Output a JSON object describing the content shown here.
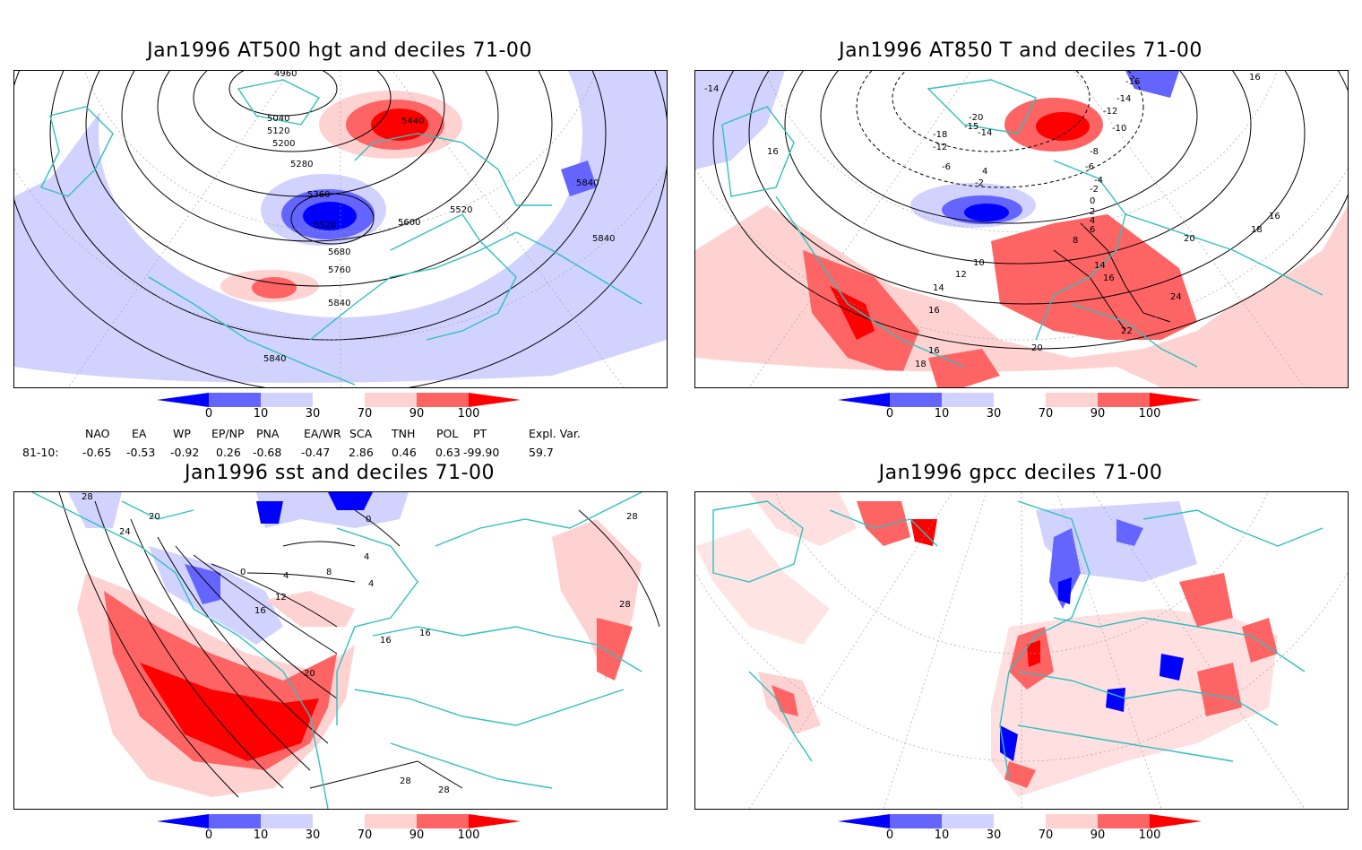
{
  "panels": {
    "p1": {
      "title": "Jan1996 AT500 hgt and deciles 71-00",
      "labels": [
        "5040",
        "5120",
        "5200",
        "5280",
        "5360",
        "5440",
        "5520",
        "5520",
        "5600",
        "5680",
        "5760",
        "5840",
        "5840",
        "5840",
        "5840",
        "4960"
      ]
    },
    "p2": {
      "title": "Jan1996 AT850 T and deciles 71-00",
      "labels": [
        "-14",
        "-16",
        "-14",
        "-12",
        "-10",
        "-8",
        "-6",
        "-4",
        "-2",
        "0",
        "2",
        "4",
        "6",
        "8",
        "10",
        "12",
        "14",
        "16",
        "16",
        "18",
        "20",
        "22",
        "24",
        "-18",
        "-12",
        "-6",
        "4",
        "-2",
        "-20",
        "-15",
        "-14",
        "14",
        "16",
        "16",
        "16",
        "18",
        "20",
        "16"
      ]
    },
    "p3": {
      "title": "Jan1996 sst and deciles 71-00",
      "labels": [
        "28",
        "24",
        "20",
        "0",
        "4",
        "8",
        "12",
        "16",
        "16",
        "16",
        "20",
        "28",
        "28",
        "28",
        "28",
        "4",
        "0",
        "4"
      ]
    },
    "p4": {
      "title": "Jan1996 gpcc deciles 71-00",
      "labels": []
    }
  },
  "colorbar": {
    "ticks": [
      "0",
      "10",
      "30",
      "70",
      "90",
      "100"
    ],
    "colors": [
      "#0000ff",
      "#6464ff",
      "#d2d2ff",
      "#ffffff",
      "#ffd2d2",
      "#ff6464",
      "#ff0000"
    ]
  },
  "indices": {
    "names": [
      "NAO",
      "EA",
      "WP",
      "EP/NP",
      "PNA",
      "EA/WR",
      "SCA",
      "TNH",
      "POL",
      "PT",
      "Expl. Var."
    ],
    "row_label": "81-10:",
    "values": [
      "-0.65",
      "-0.53",
      "-0.92",
      "0.26",
      "-0.68",
      "-0.47",
      "2.86",
      "0.46",
      "0.63",
      "-99.90",
      "59.7"
    ]
  }
}
